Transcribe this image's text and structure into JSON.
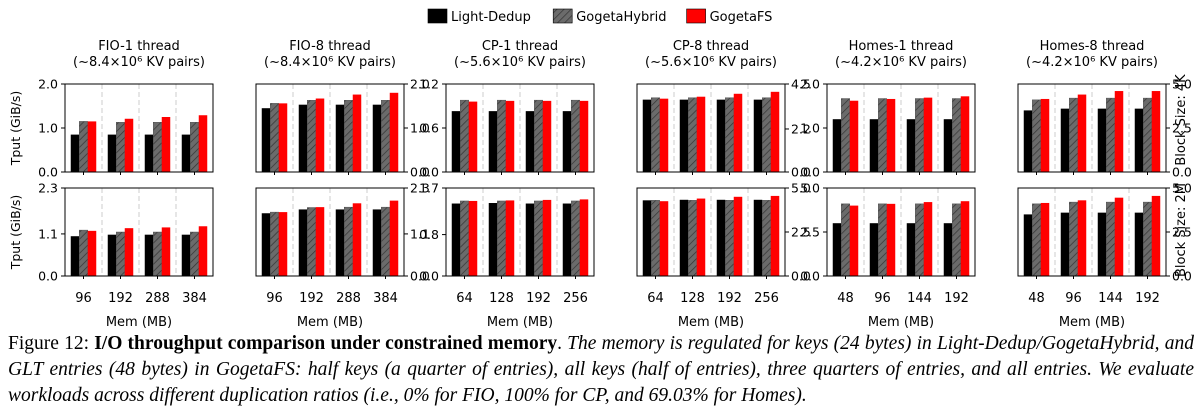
{
  "legend": [
    {
      "name": "Light-Dedup",
      "color": "#000000",
      "hatch": false
    },
    {
      "name": "GogetaHybrid",
      "color": "#6b6b6b",
      "hatch": true
    },
    {
      "name": "GogetaFS",
      "color": "#ff0000",
      "hatch": false
    }
  ],
  "row_labels": {
    "top": "Block Size: 4K",
    "bottom": "Block Size: 2M"
  },
  "caption": {
    "prefix": "Figure 12: ",
    "title": "I/O throughput comparison under constrained memory",
    "title_end": ".",
    "body": " The memory is regulated for keys (24 bytes) in Light-Dedup/GogetaHybrid, and GLT entries (48 bytes) in GogetaFS: half keys (a quarter of entries), all keys (half of entries), three quarters of entries, and all entries. We evaluate workloads across different duplication ratios (i.e., 0% for FIO, 100% for CP, and 69.03% for Homes)."
  },
  "chart_data": [
    {
      "type": "bar",
      "panel": "FIO-1 thread, 4K",
      "title": "FIO-1 thread",
      "subtitle": "(~8.4×10⁶ KV pairs)",
      "ylabel": "Tput (GiB/s)",
      "xlabel": "",
      "ylim": [
        0,
        2.0
      ],
      "yticks": [
        "0.0",
        "1.0",
        "2.0"
      ],
      "categories": [
        "96",
        "192",
        "288",
        "384"
      ],
      "series": [
        {
          "name": "Light-Dedup",
          "values": [
            0.85,
            0.85,
            0.85,
            0.85
          ]
        },
        {
          "name": "GogetaHybrid",
          "values": [
            1.15,
            1.13,
            1.13,
            1.13
          ]
        },
        {
          "name": "GogetaFS",
          "values": [
            1.15,
            1.21,
            1.25,
            1.29
          ]
        }
      ]
    },
    {
      "type": "bar",
      "panel": "FIO-8 thread, 4K",
      "title": "FIO-8 thread",
      "subtitle": "(~8.4×10⁶ KV pairs)",
      "ylabel": "",
      "xlabel": "",
      "ylim": [
        0,
        2.0
      ],
      "yticks": [
        "0.0",
        "1.0",
        "2.0"
      ],
      "categories": [
        "96",
        "192",
        "288",
        "384"
      ],
      "series": [
        {
          "name": "Light-Dedup",
          "values": [
            1.45,
            1.53,
            1.53,
            1.53
          ]
        },
        {
          "name": "GogetaHybrid",
          "values": [
            1.56,
            1.63,
            1.63,
            1.63
          ]
        },
        {
          "name": "GogetaFS",
          "values": [
            1.56,
            1.67,
            1.76,
            1.8
          ]
        }
      ]
    },
    {
      "type": "bar",
      "panel": "CP-1 thread, 4K",
      "title": "CP-1 thread",
      "subtitle": "(~5.6×10⁶ KV pairs)",
      "ylabel": "",
      "xlabel": "",
      "ylim": [
        0,
        1.2
      ],
      "yticks": [
        "0.0",
        "0.6",
        "1.2"
      ],
      "categories": [
        "64",
        "128",
        "192",
        "256"
      ],
      "series": [
        {
          "name": "Light-Dedup",
          "values": [
            0.83,
            0.83,
            0.83,
            0.83
          ]
        },
        {
          "name": "GogetaHybrid",
          "values": [
            0.98,
            0.98,
            0.98,
            0.98
          ]
        },
        {
          "name": "GogetaFS",
          "values": [
            0.96,
            0.97,
            0.97,
            0.97
          ]
        }
      ]
    },
    {
      "type": "bar",
      "panel": "CP-8 thread, 4K",
      "title": "CP-8 thread",
      "subtitle": "(~5.6×10⁶ KV pairs)",
      "ylabel": "",
      "xlabel": "",
      "ylim": [
        0,
        4.5
      ],
      "yticks": [
        "0.0",
        "2.2",
        "4.5"
      ],
      "categories": [
        "64",
        "128",
        "192",
        "256"
      ],
      "series": [
        {
          "name": "Light-Dedup",
          "values": [
            3.7,
            3.7,
            3.7,
            3.7
          ]
        },
        {
          "name": "GogetaHybrid",
          "values": [
            3.8,
            3.8,
            3.8,
            3.8
          ]
        },
        {
          "name": "GogetaFS",
          "values": [
            3.75,
            3.85,
            4.0,
            4.1
          ]
        }
      ]
    },
    {
      "type": "bar",
      "panel": "Homes-1 thread, 4K",
      "title": "Homes-1 thread",
      "subtitle": "(~4.2×10⁶ KV pairs)",
      "ylabel": "",
      "xlabel": "",
      "ylim": [
        0,
        2.0
      ],
      "yticks": [
        "0.0",
        "1.0",
        "2.0"
      ],
      "categories": [
        "48",
        "96",
        "144",
        "192"
      ],
      "series": [
        {
          "name": "Light-Dedup",
          "values": [
            1.2,
            1.2,
            1.2,
            1.2
          ]
        },
        {
          "name": "GogetaHybrid",
          "values": [
            1.67,
            1.67,
            1.67,
            1.67
          ]
        },
        {
          "name": "GogetaFS",
          "values": [
            1.62,
            1.66,
            1.69,
            1.72
          ]
        }
      ]
    },
    {
      "type": "bar",
      "panel": "Homes-8 thread, 4K",
      "title": "Homes-8 thread",
      "subtitle": "(~4.2×10⁶ KV pairs)",
      "ylabel": "",
      "xlabel": "",
      "ylim": [
        0,
        5.0
      ],
      "yticks": [
        "0.0",
        "2.5",
        "5.0"
      ],
      "categories": [
        "48",
        "96",
        "144",
        "192"
      ],
      "series": [
        {
          "name": "Light-Dedup",
          "values": [
            3.5,
            3.6,
            3.6,
            3.6
          ]
        },
        {
          "name": "GogetaHybrid",
          "values": [
            4.1,
            4.2,
            4.2,
            4.2
          ]
        },
        {
          "name": "GogetaFS",
          "values": [
            4.15,
            4.4,
            4.6,
            4.6
          ]
        }
      ]
    },
    {
      "type": "bar",
      "panel": "FIO-1 thread, 2M",
      "title": "",
      "subtitle": "",
      "ylabel": "Tput (GiB/s)",
      "xlabel": "Mem (MB)",
      "ylim": [
        0,
        2.3
      ],
      "yticks": [
        "0.0",
        "1.1",
        "2.3"
      ],
      "categories": [
        "96",
        "192",
        "288",
        "384"
      ],
      "series": [
        {
          "name": "Light-Dedup",
          "values": [
            1.04,
            1.08,
            1.08,
            1.08
          ]
        },
        {
          "name": "GogetaHybrid",
          "values": [
            1.2,
            1.15,
            1.15,
            1.15
          ]
        },
        {
          "name": "GogetaFS",
          "values": [
            1.18,
            1.25,
            1.27,
            1.3
          ]
        }
      ]
    },
    {
      "type": "bar",
      "panel": "FIO-8 thread, 2M",
      "title": "",
      "subtitle": "",
      "ylabel": "",
      "xlabel": "Mem (MB)",
      "ylim": [
        0,
        2.3
      ],
      "yticks": [
        "0.0",
        "1.1",
        "2.3"
      ],
      "categories": [
        "96",
        "192",
        "288",
        "384"
      ],
      "series": [
        {
          "name": "Light-Dedup",
          "values": [
            1.64,
            1.74,
            1.74,
            1.74
          ]
        },
        {
          "name": "GogetaHybrid",
          "values": [
            1.67,
            1.79,
            1.8,
            1.8
          ]
        },
        {
          "name": "GogetaFS",
          "values": [
            1.67,
            1.8,
            1.9,
            1.97
          ]
        }
      ]
    },
    {
      "type": "bar",
      "panel": "CP-1 thread, 2M",
      "title": "",
      "subtitle": "",
      "ylabel": "",
      "xlabel": "Mem (MB)",
      "ylim": [
        0,
        1.7
      ],
      "yticks": [
        "0.0",
        "0.8",
        "1.7"
      ],
      "categories": [
        "64",
        "128",
        "192",
        "256"
      ],
      "series": [
        {
          "name": "Light-Dedup",
          "values": [
            1.4,
            1.41,
            1.4,
            1.4
          ]
        },
        {
          "name": "GogetaHybrid",
          "values": [
            1.45,
            1.45,
            1.45,
            1.45
          ]
        },
        {
          "name": "GogetaFS",
          "values": [
            1.45,
            1.46,
            1.47,
            1.48
          ]
        }
      ]
    },
    {
      "type": "bar",
      "panel": "CP-8 thread, 2M",
      "title": "",
      "subtitle": "",
      "ylabel": "",
      "xlabel": "Mem (MB)",
      "ylim": [
        0,
        5.0
      ],
      "yticks": [
        "0.0",
        "2.5",
        "5.0"
      ],
      "categories": [
        "64",
        "128",
        "192",
        "256"
      ],
      "series": [
        {
          "name": "Light-Dedup",
          "values": [
            4.3,
            4.33,
            4.33,
            4.33
          ]
        },
        {
          "name": "GogetaHybrid",
          "values": [
            4.3,
            4.3,
            4.3,
            4.3
          ]
        },
        {
          "name": "GogetaFS",
          "values": [
            4.25,
            4.4,
            4.5,
            4.55
          ]
        }
      ]
    },
    {
      "type": "bar",
      "panel": "Homes-1 thread, 2M",
      "title": "",
      "subtitle": "",
      "ylabel": "",
      "xlabel": "Mem (MB)",
      "ylim": [
        0,
        5.0
      ],
      "yticks": [
        "0.0",
        "2.5",
        "5.0"
      ],
      "categories": [
        "48",
        "96",
        "144",
        "192"
      ],
      "series": [
        {
          "name": "Light-Dedup",
          "values": [
            3.0,
            3.0,
            3.0,
            3.0
          ]
        },
        {
          "name": "GogetaHybrid",
          "values": [
            4.1,
            4.1,
            4.1,
            4.1
          ]
        },
        {
          "name": "GogetaFS",
          "values": [
            4.0,
            4.1,
            4.2,
            4.25
          ]
        }
      ]
    },
    {
      "type": "bar",
      "panel": "Homes-8 thread, 2M",
      "title": "",
      "subtitle": "",
      "ylabel": "",
      "xlabel": "Mem (MB)",
      "ylim": [
        0,
        5.0
      ],
      "yticks": [
        "0.0",
        "2.5",
        "5.0"
      ],
      "categories": [
        "48",
        "96",
        "144",
        "192"
      ],
      "series": [
        {
          "name": "Light-Dedup",
          "values": [
            3.5,
            3.6,
            3.6,
            3.6
          ]
        },
        {
          "name": "GogetaHybrid",
          "values": [
            4.1,
            4.2,
            4.2,
            4.2
          ]
        },
        {
          "name": "GogetaFS",
          "values": [
            4.15,
            4.3,
            4.45,
            4.55
          ]
        }
      ]
    }
  ]
}
